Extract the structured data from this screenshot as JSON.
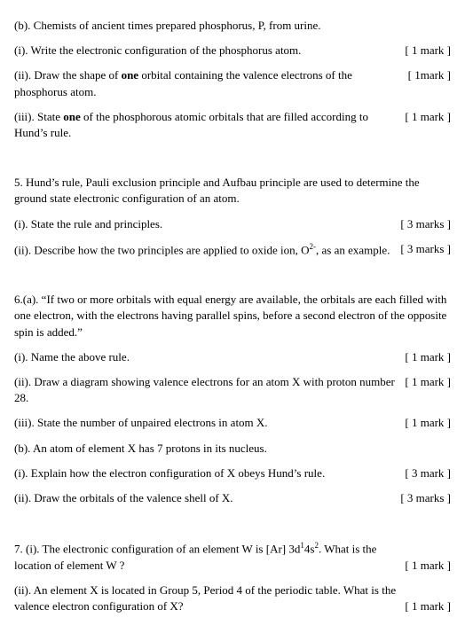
{
  "font_family": "Times New Roman",
  "font_size_pt": 10,
  "text_color": "#000000",
  "background_color": "#ffffff",
  "q4b_intro": "(b). Chemists of ancient times prepared phosphorus, P, from urine.",
  "q4b_i_text": "(i). Write the electronic configuration of the phosphorus atom.",
  "q4b_i_marks": "[ 1 mark ]",
  "q4b_ii_text_a": "(ii). Draw the shape of ",
  "q4b_ii_text_bold": "one",
  "q4b_ii_text_b": " orbital containing the valence electrons of the phosphorus atom.",
  "q4b_ii_marks": "[ 1mark ]",
  "q4b_iii_text_a": "(iii). State ",
  "q4b_iii_text_bold": "one",
  "q4b_iii_text_b": " of the phosphorous atomic orbitals that are filled according to Hund’s rule.",
  "q4b_iii_marks": "[ 1 mark ]",
  "q5_intro": "5. Hund’s rule, Pauli exclusion principle and Aufbau principle are used to determine the ground state electronic configuration of an atom.",
  "q5_i_text": "(i). State the rule and principles.",
  "q5_i_marks": "[ 3 marks ]",
  "q5_ii_text_a": "(ii). Describe how the two principles are applied to oxide ion, O",
  "q5_ii_text_sup": "2-",
  "q5_ii_text_b": ", as an example.",
  "q5_ii_marks": "[ 3 marks ]",
  "q6a_intro": "6.(a). “If two or more orbitals with equal energy are available, the orbitals are each filled with one electron, with the electrons having parallel spins, before a second electron of the opposite spin is added.”",
  "q6a_i_text": "(i). Name the above rule.",
  "q6a_i_marks": "[ 1 mark ]",
  "q6a_ii_text": "(ii). Draw a diagram showing valence electrons for an atom X with proton number 28.",
  "q6a_ii_marks": "[ 1 mark ]",
  "q6a_iii_text": "(iii). State the number of unpaired electrons in atom X.",
  "q6a_iii_marks": "[ 1 mark ]",
  "q6b_intro": "(b). An atom of element X has 7 protons in its nucleus.",
  "q6b_i_text": "(i). Explain how the electron configuration of X obeys Hund’s rule.",
  "q6b_i_marks": "[ 3 mark ]",
  "q6b_ii_text": "(ii). Draw the orbitals of the valence shell of X.",
  "q6b_ii_marks": "[ 3 marks ]",
  "q7_i_text_a": "7. (i). The electronic configuration of an element W is [Ar] 3d",
  "q7_i_sup1": "1",
  "q7_i_text_b": "4s",
  "q7_i_sup2": "2",
  "q7_i_text_c": ". What is the location of element W ?",
  "q7_i_marks": "[ 1 mark ]",
  "q7_ii_text": "(ii). An element X is located in Group 5, Period 4 of the periodic table. What is the valence electron configuration of X?",
  "q7_ii_marks": "[ 1 mark ]"
}
